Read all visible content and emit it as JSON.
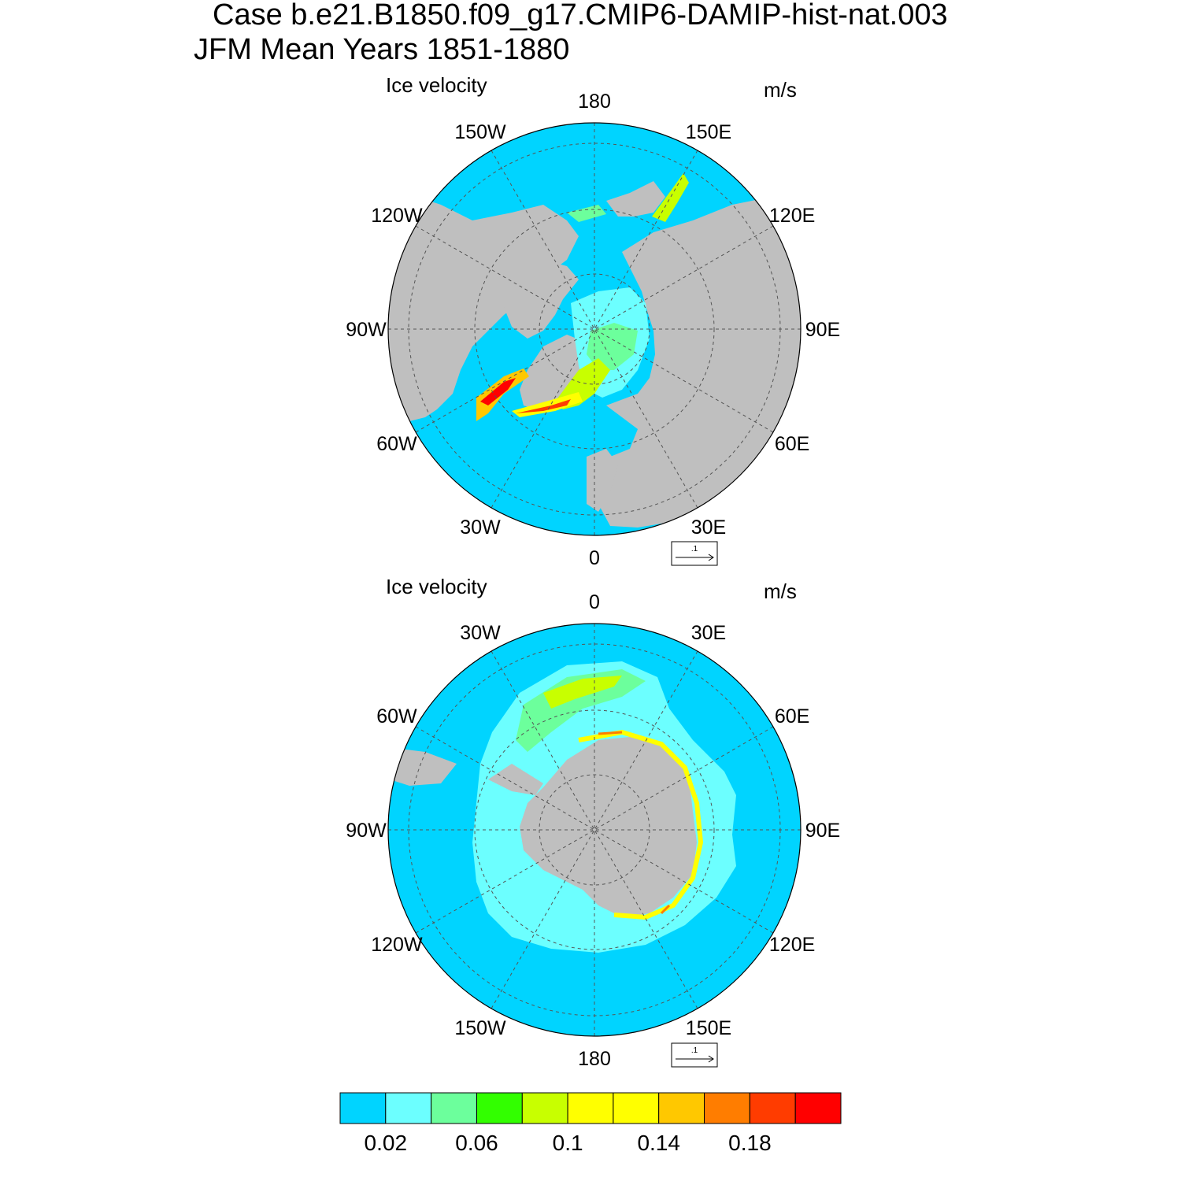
{
  "figure": {
    "title_line1": "Case b.e21.B1850.f09_g17.CMIP6-DAMIP-hist-nat.003",
    "title_line2": "JFM Mean   Years 1851-1880"
  },
  "panels": [
    {
      "hemisphere": "north",
      "title": "Ice velocity",
      "units": "m/s",
      "lon_labels": [
        "180",
        "150E",
        "120E",
        "90E",
        "60E",
        "30E",
        "0",
        "30W",
        "60W",
        "90W",
        "120W",
        "150W"
      ],
      "ref_vector_label": ".1"
    },
    {
      "hemisphere": "south",
      "title": "Ice velocity",
      "units": "m/s",
      "lon_labels": [
        "0",
        "30E",
        "60E",
        "90E",
        "120E",
        "150E",
        "180",
        "150W",
        "120W",
        "90W",
        "60W",
        "30W"
      ],
      "ref_vector_label": ".1"
    }
  ],
  "colorbar": {
    "colors": [
      "#00d4ff",
      "#6cffff",
      "#6cff9c",
      "#32ff00",
      "#c8ff00",
      "#ffff00",
      "#ffff00",
      "#ffc800",
      "#ff7d00",
      "#ff3c00",
      "#ff0000"
    ],
    "tick_labels": [
      "0.02",
      "0.06",
      "0.1",
      "0.14",
      "0.18"
    ],
    "label_every": 2
  },
  "colors": {
    "ocean": "#00d4ff",
    "land": "#bfbfbf",
    "ice_free_coast": "#ffffff"
  }
}
